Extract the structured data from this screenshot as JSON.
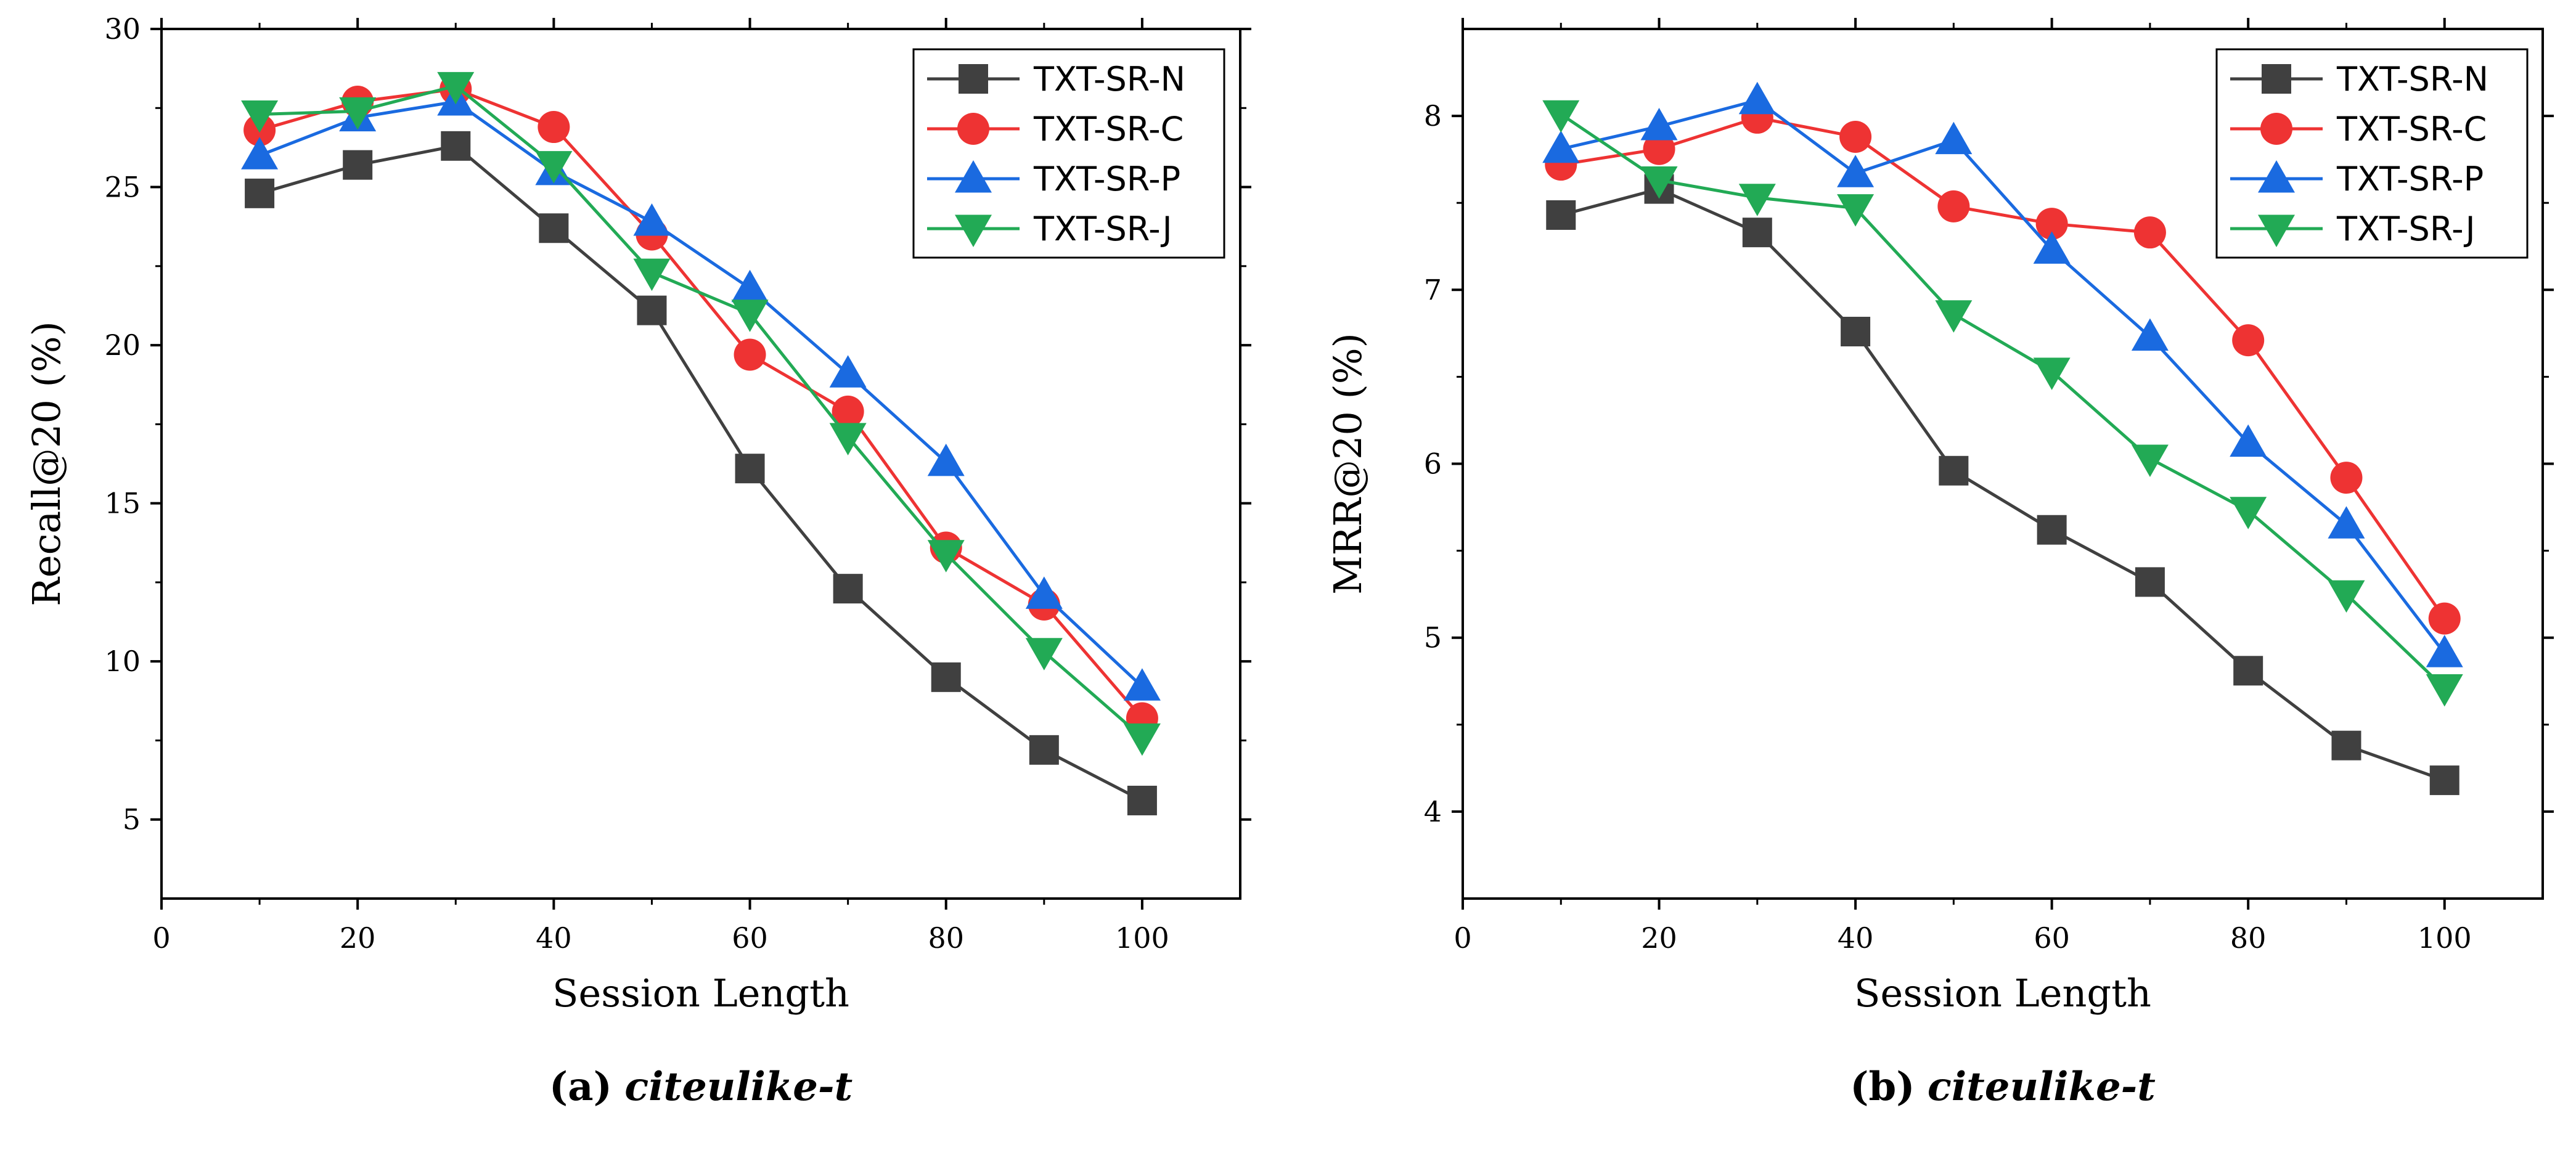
{
  "chart_data": [
    {
      "type": "line",
      "xlabel": "Session Length",
      "ylabel": "Recall@20 (%)",
      "xlim": [
        0,
        110
      ],
      "ylim": [
        2.5,
        30
      ],
      "xticks": [
        0,
        20,
        40,
        60,
        80,
        100
      ],
      "yticks": [
        5,
        10,
        15,
        20,
        25,
        30
      ],
      "legend_position": "top-right",
      "caption_letter": "(a)",
      "caption_name": "citeulike-t",
      "x": [
        10,
        20,
        30,
        40,
        50,
        60,
        70,
        80,
        90,
        100
      ],
      "series": [
        {
          "name": "TXT-SR-N",
          "color": "#404040",
          "marker": "square",
          "values": [
            24.8,
            25.7,
            26.3,
            23.7,
            21.1,
            16.1,
            12.3,
            9.5,
            7.2,
            5.6
          ]
        },
        {
          "name": "TXT-SR-C",
          "color": "#ee3333",
          "marker": "circle",
          "values": [
            26.8,
            27.7,
            28.1,
            26.9,
            23.5,
            19.7,
            17.9,
            13.6,
            11.8,
            8.2
          ]
        },
        {
          "name": "TXT-SR-P",
          "color": "#1a6ae0",
          "marker": "triangle-up",
          "values": [
            26.0,
            27.2,
            27.7,
            25.5,
            23.9,
            21.8,
            19.1,
            16.3,
            12.1,
            9.2
          ]
        },
        {
          "name": "TXT-SR-J",
          "color": "#22aa55",
          "marker": "triangle-down",
          "values": [
            27.3,
            27.4,
            28.2,
            25.7,
            22.3,
            21.0,
            17.1,
            13.4,
            10.3,
            7.6
          ]
        }
      ]
    },
    {
      "type": "line",
      "xlabel": "Session Length",
      "ylabel": "MRR@20 (%)",
      "xlim": [
        0,
        110
      ],
      "ylim": [
        3.5,
        8.5
      ],
      "xticks": [
        0,
        20,
        40,
        60,
        80,
        100
      ],
      "yticks": [
        4,
        5,
        6,
        7,
        8
      ],
      "legend_position": "top-right",
      "caption_letter": "(b)",
      "caption_name": "citeulike-t",
      "x": [
        10,
        20,
        30,
        40,
        50,
        60,
        70,
        80,
        90,
        100
      ],
      "series": [
        {
          "name": "TXT-SR-N",
          "color": "#404040",
          "marker": "square",
          "values": [
            7.43,
            7.58,
            7.33,
            6.76,
            5.96,
            5.62,
            5.32,
            4.81,
            4.38,
            4.18
          ]
        },
        {
          "name": "TXT-SR-C",
          "color": "#ee3333",
          "marker": "circle",
          "values": [
            7.72,
            7.81,
            7.99,
            7.88,
            7.48,
            7.38,
            7.33,
            6.71,
            5.92,
            5.11
          ]
        },
        {
          "name": "TXT-SR-P",
          "color": "#1a6ae0",
          "marker": "triangle-up",
          "values": [
            7.81,
            7.94,
            8.09,
            7.67,
            7.86,
            7.23,
            6.73,
            6.12,
            5.65,
            4.91
          ]
        },
        {
          "name": "TXT-SR-J",
          "color": "#22aa55",
          "marker": "triangle-down",
          "values": [
            8.01,
            7.63,
            7.53,
            7.47,
            6.86,
            6.53,
            6.03,
            5.73,
            5.25,
            4.71
          ]
        }
      ]
    }
  ]
}
